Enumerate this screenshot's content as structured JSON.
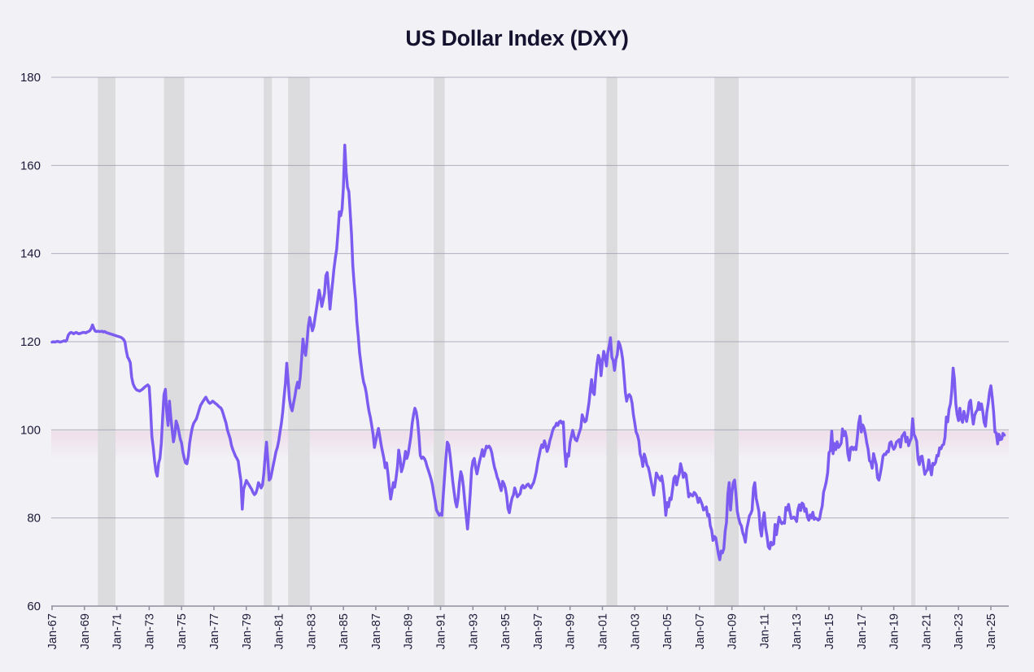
{
  "title": "US Dollar Index (DXY)",
  "colors": {
    "background": "#f1f1f6",
    "line": "#7c5cf0",
    "gridline": "#9a9aa9",
    "axis": "#8f8f9e",
    "recession_band": "#dcdcde",
    "highlight_band": "#eccbdc",
    "title_text": "#14122e",
    "tick_text": "#1c1a38"
  },
  "chart_data": {
    "type": "line",
    "title": "US Dollar Index (DXY)",
    "xlabel": "",
    "ylabel": "",
    "ylim": [
      60,
      180
    ],
    "y_ticks": [
      60,
      80,
      100,
      120,
      140,
      160,
      180
    ],
    "grid": "horizontal",
    "legend": "none",
    "x_ticks": [
      {
        "label": "Jan-67",
        "year": 1967
      },
      {
        "label": "Jan-69",
        "year": 1969
      },
      {
        "label": "Jan-71",
        "year": 1971
      },
      {
        "label": "Jan-73",
        "year": 1973
      },
      {
        "label": "Jan-75",
        "year": 1975
      },
      {
        "label": "Jan-77",
        "year": 1977
      },
      {
        "label": "Jan-79",
        "year": 1979
      },
      {
        "label": "Jan-81",
        "year": 1981
      },
      {
        "label": "Jan-83",
        "year": 1983
      },
      {
        "label": "Jan-85",
        "year": 1985
      },
      {
        "label": "Jan-87",
        "year": 1987
      },
      {
        "label": "Jan-89",
        "year": 1989
      },
      {
        "label": "Jan-91",
        "year": 1991
      },
      {
        "label": "Jan-93",
        "year": 1993
      },
      {
        "label": "Jan-95",
        "year": 1995
      },
      {
        "label": "Jan-97",
        "year": 1997
      },
      {
        "label": "Jan-99",
        "year": 1999
      },
      {
        "label": "Jan-01",
        "year": 2001
      },
      {
        "label": "Jan-03",
        "year": 2003
      },
      {
        "label": "Jan-05",
        "year": 2005
      },
      {
        "label": "Jan-07",
        "year": 2007
      },
      {
        "label": "Jan-09",
        "year": 2009
      },
      {
        "label": "Jan-11",
        "year": 2011
      },
      {
        "label": "Jan-13",
        "year": 2013
      },
      {
        "label": "Jan-15",
        "year": 2015
      },
      {
        "label": "Jan-17",
        "year": 2017
      },
      {
        "label": "Jan-19",
        "year": 2019
      },
      {
        "label": "Jan-21",
        "year": 2021
      },
      {
        "label": "Jan-23",
        "year": 2023
      },
      {
        "label": "Jan-25",
        "year": 2025
      }
    ],
    "shaded_recession_periods": [
      {
        "start": 1969.83,
        "end": 1970.92
      },
      {
        "start": 1973.92,
        "end": 1975.17
      },
      {
        "start": 1980.08,
        "end": 1980.58
      },
      {
        "start": 1981.58,
        "end": 1982.92
      },
      {
        "start": 1990.58,
        "end": 1991.25
      },
      {
        "start": 2001.25,
        "end": 2001.92
      },
      {
        "start": 2007.92,
        "end": 2009.42
      },
      {
        "start": 2020.08,
        "end": 2020.33
      }
    ],
    "highlight_band": {
      "from": 94.0,
      "to": 99.8
    },
    "series": [
      {
        "name": "DXY",
        "start_year": 1967,
        "points_per_year": 12,
        "values": [
          119.9,
          120.0,
          119.9,
          120.0,
          120.1,
          120.0,
          119.9,
          120.0,
          120.1,
          120.2,
          120.1,
          120.4,
          121.5,
          121.9,
          122.1,
          122.0,
          121.8,
          122.0,
          122.1,
          121.9,
          121.8,
          121.9,
          122.0,
          122.1,
          122.1,
          122.0,
          122.2,
          122.3,
          122.5,
          123.0,
          123.8,
          123.0,
          122.4,
          122.3,
          122.4,
          122.3,
          122.3,
          122.4,
          122.2,
          122.3,
          122.1,
          122.0,
          121.9,
          121.8,
          121.7,
          121.6,
          121.5,
          121.4,
          121.3,
          121.2,
          121.1,
          121.0,
          120.8,
          120.5,
          120.0,
          118.0,
          116.5,
          116.0,
          115.2,
          112.0,
          110.5,
          109.8,
          109.3,
          109.0,
          108.9,
          108.8,
          109.0,
          109.2,
          109.5,
          109.8,
          110.0,
          110.2,
          109.8,
          105.0,
          98.5,
          96.0,
          93.0,
          90.5,
          89.5,
          92.5,
          93.5,
          97.0,
          103.0,
          108.0,
          109.2,
          104.0,
          101.0,
          106.5,
          103.0,
          100.0,
          97.3,
          99.0,
          102.0,
          101.0,
          99.5,
          98.0,
          97.0,
          95.0,
          93.5,
          92.5,
          92.3,
          94.0,
          97.0,
          99.0,
          100.5,
          101.5,
          102.0,
          102.5,
          103.5,
          104.5,
          105.5,
          106.0,
          106.5,
          107.0,
          107.4,
          106.8,
          106.3,
          106.0,
          106.2,
          106.5,
          106.3,
          106.0,
          105.8,
          105.5,
          105.2,
          105.0,
          104.5,
          103.5,
          102.5,
          101.5,
          100.0,
          99.0,
          98.0,
          96.5,
          95.5,
          94.8,
          94.0,
          93.5,
          92.9,
          90.5,
          88.5,
          82.0,
          86.5,
          87.5,
          88.5,
          88.0,
          87.5,
          87.0,
          86.5,
          85.8,
          85.3,
          85.6,
          86.5,
          88.0,
          87.5,
          86.8,
          87.5,
          90.0,
          94.0,
          97.2,
          93.0,
          88.6,
          89.0,
          90.5,
          92.0,
          93.5,
          95.0,
          96.0,
          97.5,
          99.5,
          101.5,
          104.0,
          107.5,
          110.5,
          115.1,
          111.0,
          107.0,
          105.2,
          104.3,
          106.0,
          107.5,
          109.5,
          110.8,
          109.5,
          112.0,
          116.0,
          120.6,
          118.0,
          116.9,
          120.0,
          123.5,
          125.5,
          124.0,
          122.5,
          123.5,
          125.5,
          127.5,
          129.5,
          131.7,
          130.0,
          128.0,
          129.5,
          131.0,
          135.0,
          135.7,
          132.0,
          127.4,
          130.5,
          133.5,
          136.5,
          139.0,
          140.9,
          145.0,
          149.5,
          148.6,
          150.1,
          155.0,
          164.6,
          158.5,
          155.1,
          154.1,
          149.5,
          144.3,
          137.2,
          133.0,
          129.5,
          124.5,
          121.2,
          117.5,
          115.0,
          112.5,
          110.8,
          109.8,
          108.3,
          106.0,
          104.2,
          102.8,
          100.9,
          99.0,
          96.0,
          97.5,
          99.0,
          100.3,
          98.5,
          96.5,
          95.0,
          93.5,
          91.4,
          92.5,
          90.0,
          87.0,
          84.3,
          86.0,
          88.0,
          87.0,
          89.0,
          91.5,
          95.4,
          93.5,
          90.5,
          91.5,
          93.0,
          95.1,
          93.5,
          94.5,
          96.5,
          98.5,
          101.5,
          103.5,
          104.9,
          104.0,
          102.0,
          98.5,
          94.2,
          93.5,
          93.8,
          93.5,
          92.8,
          91.7,
          90.8,
          89.8,
          88.8,
          87.4,
          85.5,
          83.8,
          81.8,
          81.2,
          80.6,
          81.0,
          80.6,
          85.0,
          89.5,
          93.5,
          97.2,
          96.6,
          94.5,
          91.5,
          88.5,
          86.0,
          83.7,
          82.5,
          84.5,
          88.0,
          90.5,
          89.5,
          87.0,
          83.5,
          80.5,
          77.5,
          81.0,
          85.5,
          91.0,
          92.9,
          93.5,
          91.5,
          90.0,
          91.5,
          93.0,
          94.2,
          95.5,
          94.0,
          95.1,
          96.3,
          96.0,
          96.3,
          95.8,
          94.8,
          93.0,
          91.5,
          90.5,
          89.2,
          88.5,
          87.2,
          86.2,
          88.3,
          87.8,
          86.8,
          85.0,
          82.2,
          81.2,
          83.0,
          84.5,
          85.2,
          86.8,
          85.8,
          84.8,
          85.2,
          85.5,
          87.0,
          87.4,
          86.8,
          87.0,
          87.5,
          87.7,
          87.2,
          86.8,
          87.5,
          88.0,
          89.2,
          90.5,
          92.5,
          94.0,
          95.5,
          96.6,
          96.0,
          97.5,
          96.5,
          95.1,
          96.0,
          97.5,
          98.5,
          99.7,
          100.5,
          100.8,
          101.5,
          101.0,
          101.8,
          102.0,
          101.5,
          101.8,
          95.5,
          91.7,
          94.5,
          94.0,
          97.2,
          98.5,
          99.9,
          98.5,
          97.8,
          97.5,
          98.5,
          99.5,
          100.5,
          103.4,
          102.5,
          101.8,
          102.1,
          104.0,
          106.0,
          109.0,
          111.4,
          108.5,
          108.0,
          112.0,
          115.0,
          116.9,
          116.0,
          112.3,
          115.5,
          117.8,
          116.5,
          114.5,
          117.5,
          119.0,
          120.9,
          116.5,
          115.7,
          113.5,
          116.0,
          117.0,
          120.0,
          119.3,
          118.0,
          116.0,
          112.5,
          108.5,
          106.5,
          107.7,
          108.0,
          107.5,
          106.0,
          103.4,
          101.5,
          99.5,
          98.8,
          97.5,
          94.5,
          93.5,
          91.7,
          94.5,
          93.5,
          92.0,
          91.5,
          90.2,
          88.5,
          87.0,
          85.2,
          87.5,
          90.2,
          89.5,
          89.0,
          88.5,
          89.5,
          87.5,
          84.5,
          80.6,
          83.5,
          82.5,
          84.5,
          84.2,
          86.5,
          89.0,
          89.5,
          87.5,
          89.0,
          90.0,
          92.3,
          91.0,
          89.2,
          90.2,
          89.8,
          87.5,
          84.8,
          85.5,
          85.2,
          85.0,
          85.8,
          85.5,
          84.9,
          83.5,
          84.5,
          83.8,
          83.0,
          81.8,
          82.0,
          82.5,
          80.5,
          80.8,
          78.2,
          77.2,
          74.9,
          75.8,
          75.5,
          73.7,
          71.8,
          70.5,
          72.5,
          72.1,
          73.0,
          77.0,
          79.0,
          85.5,
          88.0,
          81.8,
          85.8,
          88.0,
          88.6,
          85.5,
          81.5,
          80.0,
          78.8,
          78.2,
          76.7,
          75.8,
          74.5,
          77.5,
          79.0,
          80.5,
          81.0,
          81.8,
          86.8,
          88.0,
          84.5,
          83.0,
          81.5,
          77.5,
          75.9,
          79.5,
          81.2,
          77.7,
          75.9,
          73.5,
          73.0,
          74.5,
          73.9,
          74.1,
          78.5,
          76.2,
          78.3,
          80.2,
          79.3,
          78.7,
          79.0,
          78.8,
          82.4,
          81.8,
          83.1,
          81.3,
          79.9,
          80.0,
          80.2,
          79.8,
          79.2,
          81.9,
          83.0,
          81.7,
          83.4,
          83.1,
          81.5,
          82.1,
          80.2,
          79.5,
          80.7,
          80.0,
          81.3,
          79.7,
          80.0,
          79.8,
          79.5,
          79.8,
          81.5,
          82.7,
          85.9,
          87.0,
          88.3,
          90.3,
          94.8,
          95.3,
          99.7,
          94.6,
          96.9,
          95.5,
          97.3,
          96.0,
          96.4,
          97.0,
          100.2,
          98.7,
          99.6,
          98.2,
          94.6,
          93.1,
          95.9,
          96.1,
          95.5,
          96.0,
          95.5,
          98.4,
          101.5,
          103.1,
          99.5,
          101.1,
          100.4,
          99.0,
          97.0,
          95.6,
          93.0,
          92.7,
          91.3,
          94.6,
          93.3,
          92.1,
          89.1,
          88.6,
          90.0,
          91.8,
          94.0,
          94.5,
          94.4,
          95.1,
          95.0,
          97.0,
          97.3,
          96.2,
          95.6,
          96.1,
          97.2,
          97.5,
          97.8,
          96.1,
          98.5,
          98.9,
          99.4,
          97.3,
          98.3,
          96.4,
          97.4,
          98.1,
          102.5,
          99.0,
          98.3,
          97.4,
          93.3,
          92.1,
          93.9,
          94.0,
          91.9,
          89.9,
          90.6,
          90.9,
          93.2,
          91.3,
          89.8,
          92.4,
          92.1,
          92.6,
          94.2,
          94.1,
          95.9,
          95.7,
          96.5,
          96.7,
          98.3,
          102.9,
          101.8,
          104.7,
          105.9,
          108.8,
          114.0,
          111.5,
          105.9,
          103.5,
          102.1,
          104.9,
          102.5,
          101.7,
          104.2,
          102.9,
          101.9,
          103.6,
          106.2,
          106.7,
          103.5,
          101.3,
          103.3,
          104.1,
          104.5,
          106.2,
          104.6,
          105.9,
          104.1,
          101.7,
          100.8,
          104.0,
          106.0,
          108.5,
          110.0,
          107.3,
          104.2,
          99.5,
          99.3,
          96.8,
          99.0,
          97.8,
          97.9,
          99.2,
          98.8
        ]
      }
    ]
  }
}
